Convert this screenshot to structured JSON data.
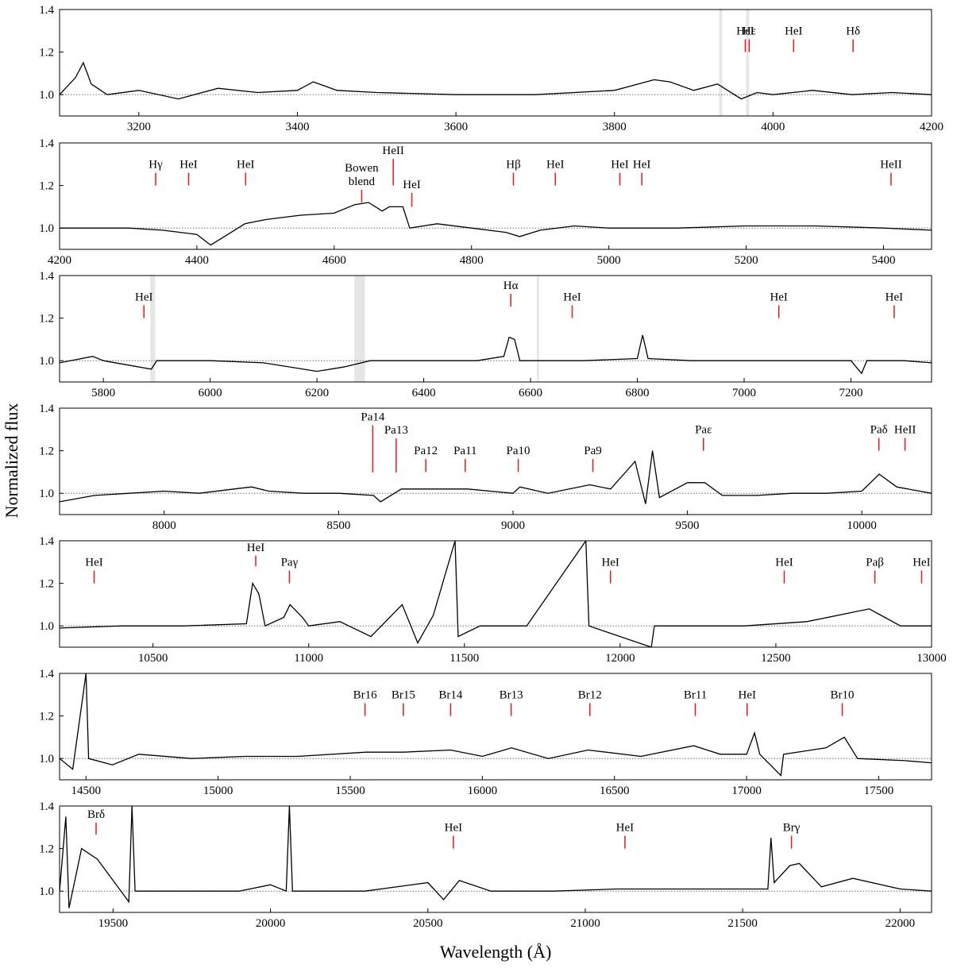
{
  "xlabel": "Wavelength (Å)",
  "ylabel": "Normalized flux",
  "chart_data": [
    {
      "type": "line",
      "xlim": [
        3100,
        4200
      ],
      "ylim": [
        0.9,
        1.4
      ],
      "xticks": [
        3200,
        3400,
        3600,
        3800,
        4000,
        4200
      ],
      "yticks": [
        {
          "value": 1,
          "label": "1.0"
        },
        1.2,
        1.4
      ],
      "reference_line": 1,
      "color": "#000000",
      "marker_color": "#e41a1c",
      "shaded": [
        [
          3932,
          3936
        ],
        [
          3966,
          3970
        ]
      ],
      "x": [
        3100,
        3120,
        3130,
        3135,
        3140,
        3160,
        3200,
        3250,
        3300,
        3350,
        3400,
        3420,
        3450,
        3500,
        3600,
        3700,
        3800,
        3820,
        3850,
        3870,
        3900,
        3930,
        3960,
        3980,
        4000,
        4050,
        4100,
        4150,
        4200
      ],
      "values": [
        1.0,
        1.08,
        1.15,
        1.1,
        1.05,
        1.0,
        1.02,
        0.98,
        1.03,
        1.01,
        1.02,
        1.06,
        1.02,
        1.01,
        1.0,
        1.0,
        1.02,
        1.04,
        1.07,
        1.06,
        1.02,
        1.05,
        0.98,
        1.01,
        1.0,
        1.02,
        1.0,
        1.01,
        1.0
      ],
      "lines": [
        {
          "label": "HeI",
          "x": 3965,
          "ymin": 1.2,
          "ymax": 1.26
        },
        {
          "label": "Hε",
          "x": 3970,
          "ymin": 1.2,
          "ymax": 1.26
        },
        {
          "label": "HeI",
          "x": 4026,
          "ymin": 1.2,
          "ymax": 1.26
        },
        {
          "label": "Hδ",
          "x": 4101,
          "ymin": 1.2,
          "ymax": 1.26
        }
      ]
    },
    {
      "type": "line",
      "xlim": [
        4200,
        5470
      ],
      "ylim": [
        0.9,
        1.4
      ],
      "xticks": [
        4200,
        4400,
        4600,
        4800,
        5000,
        5200,
        5400
      ],
      "yticks": [
        {
          "value": 1,
          "label": "1.0"
        },
        1.2,
        1.4
      ],
      "reference_line": 1,
      "color": "#000000",
      "marker_color": "#e41a1c",
      "shaded": [],
      "x": [
        4200,
        4250,
        4300,
        4350,
        4400,
        4420,
        4440,
        4470,
        4500,
        4550,
        4600,
        4630,
        4650,
        4670,
        4680,
        4700,
        4710,
        4750,
        4800,
        4850,
        4870,
        4900,
        4950,
        5000,
        5100,
        5200,
        5300,
        5400,
        5470
      ],
      "values": [
        1.0,
        1.0,
        1.0,
        0.99,
        0.97,
        0.92,
        0.96,
        1.02,
        1.04,
        1.06,
        1.07,
        1.11,
        1.12,
        1.08,
        1.1,
        1.1,
        1.0,
        1.02,
        1.0,
        0.98,
        0.96,
        0.99,
        1.01,
        1.0,
        1.0,
        1.01,
        1.01,
        1.0,
        0.99
      ],
      "lines": [
        {
          "label": "Hγ",
          "x": 4340,
          "ymin": 1.2,
          "ymax": 1.26
        },
        {
          "label": "HeI",
          "x": 4388,
          "ymin": 1.2,
          "ymax": 1.26
        },
        {
          "label": "HeI",
          "x": 4471,
          "ymin": 1.2,
          "ymax": 1.26
        },
        {
          "label": "Bowen blend",
          "x": 4640,
          "ymin": 1.12,
          "ymax": 1.18
        },
        {
          "label": "HeII",
          "x": 4686,
          "ymin": 1.2,
          "ymax": 1.325
        },
        {
          "label": "HeI",
          "x": 4713,
          "ymin": 1.1,
          "ymax": 1.165
        },
        {
          "label": "Hβ",
          "x": 4861,
          "ymin": 1.2,
          "ymax": 1.26
        },
        {
          "label": "HeI",
          "x": 4922,
          "ymin": 1.2,
          "ymax": 1.26
        },
        {
          "label": "HeI",
          "x": 5016,
          "ymin": 1.2,
          "ymax": 1.26
        },
        {
          "label": "HeI",
          "x": 5048,
          "ymin": 1.2,
          "ymax": 1.26
        },
        {
          "label": "HeII",
          "x": 5411,
          "ymin": 1.2,
          "ymax": 1.26
        }
      ]
    },
    {
      "type": "line",
      "xlim": [
        5718,
        7351
      ],
      "ylim": [
        0.9,
        1.4
      ],
      "xticks": [
        5800,
        6000,
        6200,
        6400,
        6600,
        6800,
        7000,
        7200
      ],
      "yticks": [
        {
          "value": 1,
          "label": "1.0"
        },
        1.2,
        1.4
      ],
      "reference_line": 1,
      "color": "#000000",
      "marker_color": "#e41a1c",
      "shaded": [
        [
          5888,
          5897
        ],
        [
          6270,
          6290
        ],
        [
          6612,
          6616
        ]
      ],
      "x": [
        5718,
        5780,
        5800,
        5890,
        5900,
        6000,
        6100,
        6200,
        6250,
        6300,
        6400,
        6500,
        6550,
        6560,
        6570,
        6580,
        6650,
        6700,
        6800,
        6810,
        6820,
        6900,
        7000,
        7100,
        7200,
        7220,
        7230,
        7300,
        7351
      ],
      "values": [
        0.99,
        1.02,
        1.0,
        0.96,
        1.0,
        1.0,
        0.99,
        0.95,
        0.97,
        1.0,
        1.0,
        1.0,
        1.02,
        1.11,
        1.1,
        1.0,
        1.0,
        1.0,
        1.01,
        1.12,
        1.01,
        1.0,
        1.0,
        1.0,
        1.0,
        0.94,
        1.0,
        1.0,
        0.99
      ],
      "lines": [
        {
          "label": "HeI",
          "x": 5876,
          "ymin": 1.2,
          "ymax": 1.26
        },
        {
          "label": "Hα",
          "x": 6563,
          "ymin": 1.254,
          "ymax": 1.314
        },
        {
          "label": "HeI",
          "x": 6678,
          "ymin": 1.2,
          "ymax": 1.26
        },
        {
          "label": "HeI",
          "x": 7065,
          "ymin": 1.2,
          "ymax": 1.26
        },
        {
          "label": "HeI",
          "x": 7281,
          "ymin": 1.2,
          "ymax": 1.26
        }
      ]
    },
    {
      "type": "line",
      "xlim": [
        7700,
        10200
      ],
      "ylim": [
        0.9,
        1.4
      ],
      "xticks": [
        8000,
        8500,
        9000,
        9500,
        10000
      ],
      "yticks": [
        {
          "value": 1,
          "label": "1.0"
        },
        1.2,
        1.4
      ],
      "reference_line": 1,
      "color": "#000000",
      "marker_color": "#e41a1c",
      "shaded": [],
      "x": [
        7700,
        7800,
        7900,
        8000,
        8100,
        8200,
        8250,
        8300,
        8400,
        8500,
        8600,
        8620,
        8680,
        8750,
        8870,
        9000,
        9020,
        9100,
        9220,
        9280,
        9350,
        9380,
        9400,
        9420,
        9500,
        9550,
        9600,
        9700,
        9800,
        9900,
        10000,
        10050,
        10100,
        10200
      ],
      "values": [
        0.96,
        0.99,
        1.0,
        1.01,
        1.0,
        1.02,
        1.03,
        1.01,
        1.0,
        1.0,
        0.99,
        0.96,
        1.02,
        1.02,
        1.02,
        1.0,
        1.03,
        1.0,
        1.04,
        1.02,
        1.15,
        0.95,
        1.2,
        0.98,
        1.05,
        1.05,
        0.99,
        0.99,
        1.0,
        1.0,
        1.01,
        1.09,
        1.03,
        1.0
      ],
      "lines": [
        {
          "label": "Pa14",
          "x": 8598,
          "ymin": 1.098,
          "ymax": 1.32
        },
        {
          "label": "Pa13",
          "x": 8665,
          "ymin": 1.098,
          "ymax": 1.258
        },
        {
          "label": "Pa12",
          "x": 8750,
          "ymin": 1.1,
          "ymax": 1.161
        },
        {
          "label": "Pa11",
          "x": 8863,
          "ymin": 1.1,
          "ymax": 1.161
        },
        {
          "label": "Pa10",
          "x": 9015,
          "ymin": 1.1,
          "ymax": 1.161
        },
        {
          "label": "Pa9",
          "x": 9229,
          "ymin": 1.1,
          "ymax": 1.161
        },
        {
          "label": "Paε",
          "x": 9546,
          "ymin": 1.2,
          "ymax": 1.26
        },
        {
          "label": "Paδ",
          "x": 10049,
          "ymin": 1.2,
          "ymax": 1.26
        },
        {
          "label": "HeII",
          "x": 10124,
          "ymin": 1.2,
          "ymax": 1.26
        }
      ]
    },
    {
      "type": "line",
      "xlim": [
        10200,
        13000
      ],
      "ylim": [
        0.9,
        1.4
      ],
      "xticks": [
        10500,
        11000,
        11500,
        12000,
        12500,
        13000
      ],
      "yticks": [
        {
          "value": 1,
          "label": "1.0"
        },
        1.2,
        1.4
      ],
      "reference_line": 1,
      "color": "#000000",
      "marker_color": "#e41a1c",
      "shaded": [],
      "x": [
        10200,
        10400,
        10600,
        10800,
        10820,
        10840,
        10860,
        10920,
        10940,
        10980,
        11000,
        11100,
        11200,
        11300,
        11350,
        11400,
        11470,
        11480,
        11550,
        11700,
        11890,
        11900,
        12100,
        12110,
        12400,
        12600,
        12800,
        12850,
        12900,
        13000
      ],
      "values": [
        0.99,
        1.0,
        1.0,
        1.01,
        1.2,
        1.15,
        1.0,
        1.04,
        1.1,
        1.04,
        1.0,
        1.02,
        0.95,
        1.1,
        0.92,
        1.05,
        1.4,
        0.95,
        1.0,
        1.0,
        1.4,
        1.0,
        0.9,
        1.0,
        1.0,
        1.02,
        1.08,
        1.04,
        1.0,
        1.0
      ],
      "lines": [
        {
          "label": "HeI",
          "x": 10311,
          "ymin": 1.2,
          "ymax": 1.26
        },
        {
          "label": "HeI",
          "x": 10830,
          "ymin": 1.28,
          "ymax": 1.33
        },
        {
          "label": "Paγ",
          "x": 10938,
          "ymin": 1.2,
          "ymax": 1.26
        },
        {
          "label": "HeI",
          "x": 11969,
          "ymin": 1.2,
          "ymax": 1.26
        },
        {
          "label": "HeI",
          "x": 12527,
          "ymin": 1.2,
          "ymax": 1.26
        },
        {
          "label": "Paβ",
          "x": 12818,
          "ymin": 1.2,
          "ymax": 1.26
        },
        {
          "label": "HeI",
          "x": 12968,
          "ymin": 1.2,
          "ymax": 1.26
        }
      ]
    },
    {
      "type": "line",
      "xlim": [
        14400,
        17700
      ],
      "ylim": [
        0.9,
        1.4
      ],
      "xticks": [
        14500,
        15000,
        15500,
        16000,
        16500,
        17000,
        17500
      ],
      "yticks": [
        {
          "value": 1,
          "label": "1.0"
        },
        1.2,
        1.4
      ],
      "reference_line": 1,
      "color": "#000000",
      "marker_color": "#e41a1c",
      "shaded": [],
      "x": [
        14400,
        14450,
        14500,
        14510,
        14600,
        14700,
        14900,
        15100,
        15300,
        15560,
        15700,
        15880,
        16000,
        16110,
        16250,
        16400,
        16600,
        16800,
        16900,
        17000,
        17030,
        17050,
        17130,
        17140,
        17300,
        17370,
        17420,
        17600,
        17700
      ],
      "values": [
        1.0,
        0.95,
        1.4,
        1.0,
        0.97,
        1.02,
        1.0,
        1.01,
        1.01,
        1.03,
        1.03,
        1.04,
        1.01,
        1.05,
        1.0,
        1.04,
        1.01,
        1.06,
        1.02,
        1.02,
        1.12,
        1.02,
        0.92,
        1.02,
        1.05,
        1.1,
        1.0,
        0.99,
        0.98
      ],
      "lines": [
        {
          "label": "Br16",
          "x": 15556,
          "ymin": 1.2,
          "ymax": 1.26
        },
        {
          "label": "Br15",
          "x": 15701,
          "ymin": 1.2,
          "ymax": 1.26
        },
        {
          "label": "Br14",
          "x": 15880,
          "ymin": 1.2,
          "ymax": 1.26
        },
        {
          "label": "Br13",
          "x": 16109,
          "ymin": 1.2,
          "ymax": 1.26
        },
        {
          "label": "Br12",
          "x": 16407,
          "ymin": 1.2,
          "ymax": 1.26
        },
        {
          "label": "Br11",
          "x": 16806,
          "ymin": 1.2,
          "ymax": 1.26
        },
        {
          "label": "HeI",
          "x": 17002,
          "ymin": 1.2,
          "ymax": 1.26
        },
        {
          "label": "Br10",
          "x": 17362,
          "ymin": 1.2,
          "ymax": 1.26
        }
      ]
    },
    {
      "type": "line",
      "xlim": [
        19330,
        22100
      ],
      "ylim": [
        0.9,
        1.4
      ],
      "xticks": [
        19500,
        20000,
        20500,
        21000,
        21500,
        22000
      ],
      "yticks": [
        {
          "value": 1,
          "label": "1.0"
        },
        1.2,
        1.4
      ],
      "reference_line": 1,
      "color": "#000000",
      "marker_color": "#e41a1c",
      "shaded": [],
      "x": [
        19330,
        19350,
        19360,
        19400,
        19450,
        19500,
        19550,
        19560,
        19570,
        19700,
        19900,
        20000,
        20050,
        20060,
        20070,
        20300,
        20500,
        20550,
        20600,
        20700,
        20900,
        21100,
        21400,
        21580,
        21590,
        21600,
        21650,
        21680,
        21750,
        21850,
        22000,
        22100
      ],
      "values": [
        1.0,
        1.35,
        0.92,
        1.2,
        1.15,
        1.05,
        0.95,
        1.4,
        1.0,
        1.0,
        1.0,
        1.03,
        1.0,
        1.4,
        1.0,
        1.0,
        1.04,
        0.96,
        1.05,
        1.0,
        1.0,
        1.01,
        1.01,
        1.01,
        1.25,
        1.04,
        1.12,
        1.13,
        1.02,
        1.06,
        1.01,
        1.0
      ],
      "lines": [
        {
          "label": "Brδ",
          "x": 19446,
          "ymin": 1.266,
          "ymax": 1.322
        },
        {
          "label": "HeI",
          "x": 20581,
          "ymin": 1.2,
          "ymax": 1.26
        },
        {
          "label": "HeI",
          "x": 21126,
          "ymin": 1.2,
          "ymax": 1.26
        },
        {
          "label": "Brγ",
          "x": 21655,
          "ymin": 1.2,
          "ymax": 1.26
        }
      ]
    }
  ]
}
